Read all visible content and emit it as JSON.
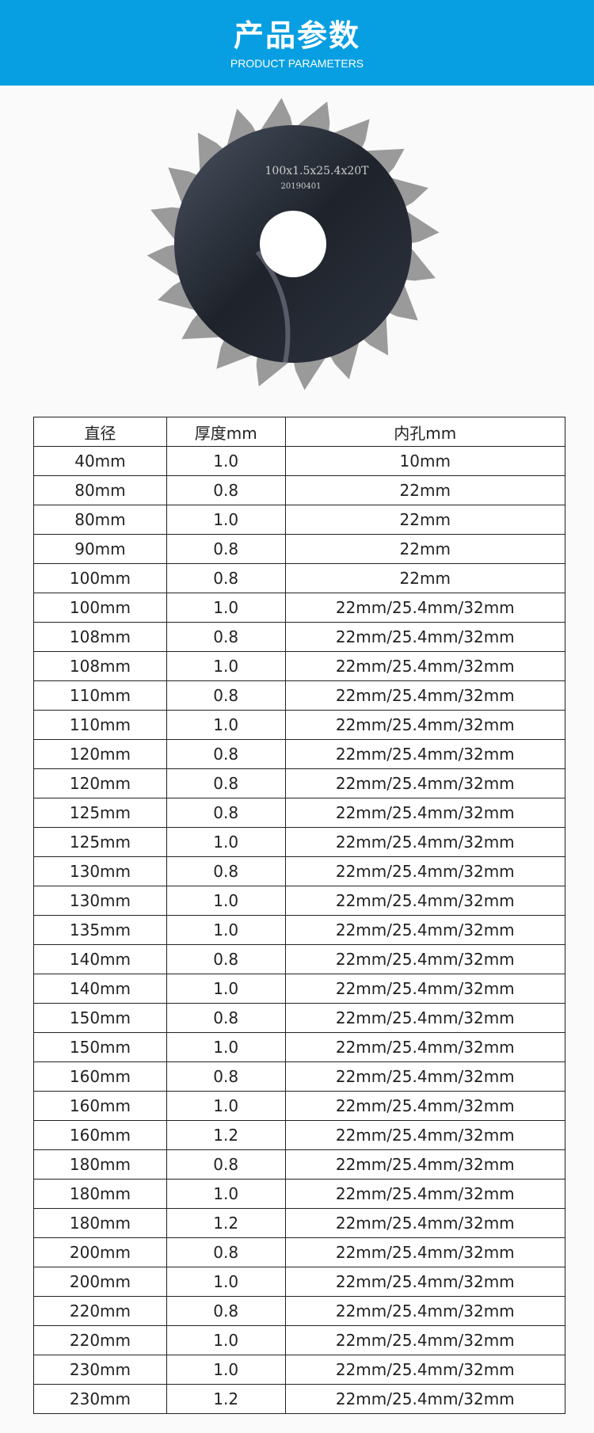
{
  "header": {
    "title": "产品参数",
    "subtitle": "PRODUCT PARAMETERS",
    "color": "#079fe2"
  },
  "product_image": {
    "engraving_line1": "100x1.5x25.4x20T",
    "engraving_line2": "20190401"
  },
  "table": {
    "columns": [
      "直径",
      "厚度mm",
      "内孔mm"
    ],
    "rows": [
      [
        "40mm",
        "1.0",
        "10mm"
      ],
      [
        "80mm",
        "0.8",
        "22mm"
      ],
      [
        "80mm",
        "1.0",
        "22mm"
      ],
      [
        "90mm",
        "0.8",
        "22mm"
      ],
      [
        "100mm",
        "0.8",
        "22mm"
      ],
      [
        "100mm",
        "1.0",
        "22mm/25.4mm/32mm"
      ],
      [
        "108mm",
        "0.8",
        "22mm/25.4mm/32mm"
      ],
      [
        "108mm",
        "1.0",
        "22mm/25.4mm/32mm"
      ],
      [
        "110mm",
        "0.8",
        "22mm/25.4mm/32mm"
      ],
      [
        "110mm",
        "1.0",
        "22mm/25.4mm/32mm"
      ],
      [
        "120mm",
        "0.8",
        "22mm/25.4mm/32mm"
      ],
      [
        "120mm",
        "0.8",
        "22mm/25.4mm/32mm"
      ],
      [
        "125mm",
        "0.8",
        "22mm/25.4mm/32mm"
      ],
      [
        "125mm",
        "1.0",
        "22mm/25.4mm/32mm"
      ],
      [
        "130mm",
        "0.8",
        "22mm/25.4mm/32mm"
      ],
      [
        "130mm",
        "1.0",
        "22mm/25.4mm/32mm"
      ],
      [
        "135mm",
        "1.0",
        "22mm/25.4mm/32mm"
      ],
      [
        "140mm",
        "0.8",
        "22mm/25.4mm/32mm"
      ],
      [
        "140mm",
        "1.0",
        "22mm/25.4mm/32mm"
      ],
      [
        "150mm",
        "0.8",
        "22mm/25.4mm/32mm"
      ],
      [
        "150mm",
        "1.0",
        "22mm/25.4mm/32mm"
      ],
      [
        "160mm",
        "0.8",
        "22mm/25.4mm/32mm"
      ],
      [
        "160mm",
        "1.0",
        "22mm/25.4mm/32mm"
      ],
      [
        "160mm",
        "1.2",
        "22mm/25.4mm/32mm"
      ],
      [
        "180mm",
        "0.8",
        "22mm/25.4mm/32mm"
      ],
      [
        "180mm",
        "1.0",
        "22mm/25.4mm/32mm"
      ],
      [
        "180mm",
        "1.2",
        "22mm/25.4mm/32mm"
      ],
      [
        "200mm",
        "0.8",
        "22mm/25.4mm/32mm"
      ],
      [
        "200mm",
        "1.0",
        "22mm/25.4mm/32mm"
      ],
      [
        "220mm",
        "0.8",
        "22mm/25.4mm/32mm"
      ],
      [
        "220mm",
        "1.0",
        "22mm/25.4mm/32mm"
      ],
      [
        "230mm",
        "1.0",
        "22mm/25.4mm/32mm"
      ],
      [
        "230mm",
        "1.2",
        "22mm/25.4mm/32mm"
      ]
    ]
  }
}
